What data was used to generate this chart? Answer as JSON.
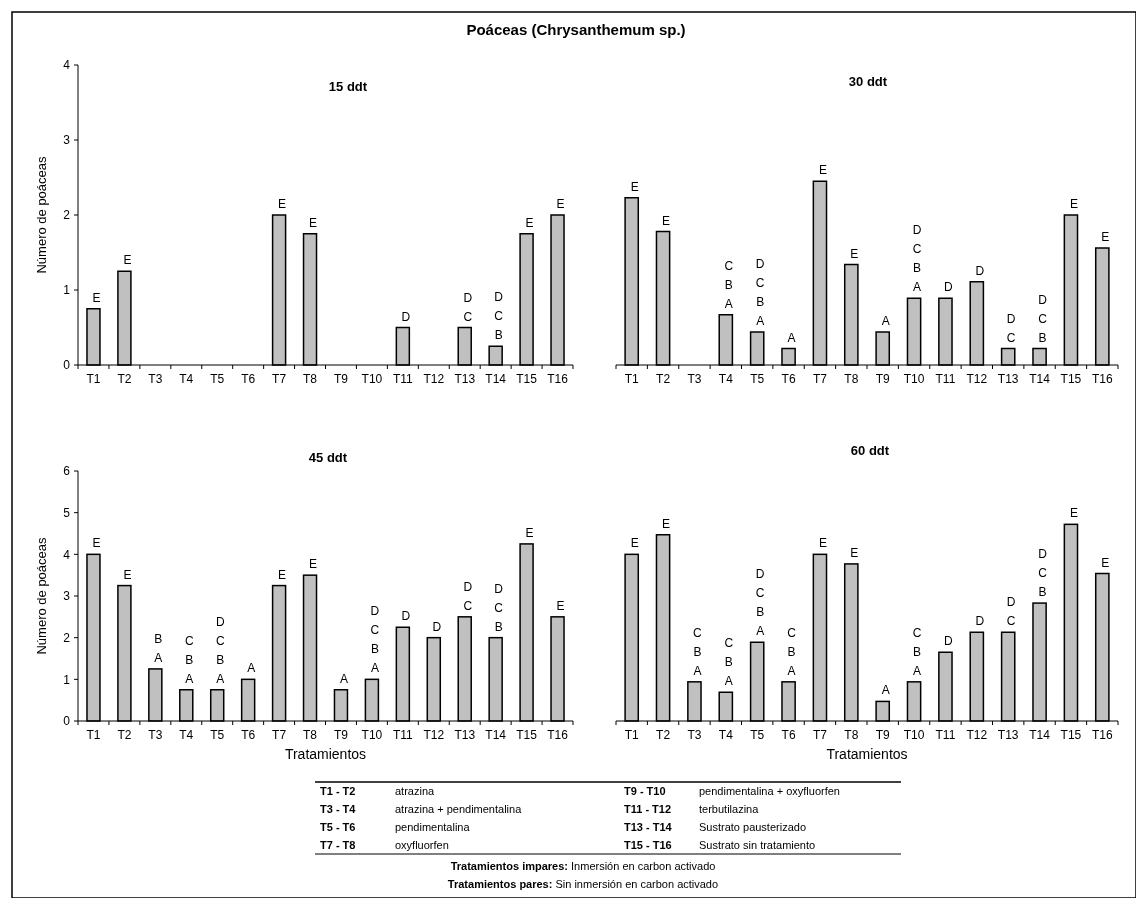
{
  "chart_data": [
    {
      "type": "bar",
      "title": "15 ddt",
      "ylabel": "Número de poáceas",
      "color": "#c0c0c0",
      "categories": [
        "T1",
        "T2",
        "T3",
        "T4",
        "T5",
        "T6",
        "T7",
        "T8",
        "T9",
        "T10",
        "T11",
        "T12",
        "T13",
        "T14",
        "T15",
        "T16"
      ],
      "values": [
        0.75,
        1.25,
        0,
        0,
        0,
        0,
        2,
        1.75,
        0,
        0,
        0.5,
        0,
        0.5,
        0.25,
        1.75,
        2
      ],
      "ylim": [
        0,
        4
      ],
      "yticks": [
        0,
        1,
        2,
        3,
        4
      ],
      "annotations": [
        {
          "text": "E",
          "x": "T1",
          "y": 0.75
        },
        {
          "text": "E",
          "x": "T2",
          "y": 1.25
        },
        {
          "text": "E",
          "x": "T7",
          "y": 2
        },
        {
          "text": "E",
          "x": "T8",
          "y": 1.75
        },
        {
          "text": "D",
          "x": "T11",
          "y": 0.5
        },
        {
          "text": "D\nC",
          "x": "T13",
          "y": 0.5
        },
        {
          "text": "D\nC\nB",
          "x": "T14",
          "y": 0.25
        },
        {
          "text": "E",
          "x": "T15",
          "y": 1.75
        },
        {
          "text": "E",
          "x": "T16",
          "y": 2
        }
      ]
    },
    {
      "type": "bar",
      "title": "30 ddt",
      "color": "#c0c0c0",
      "categories": [
        "T1",
        "T2",
        "T3",
        "T4",
        "T5",
        "T6",
        "T7",
        "T8",
        "T9",
        "T10",
        "T11",
        "T12",
        "T13",
        "T14",
        "T15",
        "T16"
      ],
      "values": [
        2.23,
        1.78,
        0,
        0.67,
        0.44,
        0.22,
        2.45,
        1.34,
        0.44,
        0.89,
        0.89,
        1.11,
        0.22,
        0.22,
        2,
        1.56
      ],
      "ylim": [
        0,
        4
      ],
      "yticks": [
        0,
        1,
        2,
        3,
        4
      ],
      "tick_labels": "x",
      "annotations": [
        {
          "text": "E",
          "x": "T1",
          "y": 2.23
        },
        {
          "text": "E",
          "x": "T2",
          "y": 1.78
        },
        {
          "text": "C\nB\nA",
          "x": "T4",
          "y": 0.67
        },
        {
          "text": "D\nC\nB\nA",
          "x": "T5",
          "y": 0.44
        },
        {
          "text": "A",
          "x": "T6",
          "y": 0.22
        },
        {
          "text": "E",
          "x": "T7",
          "y": 2.45
        },
        {
          "text": "E",
          "x": "T8",
          "y": 1.34
        },
        {
          "text": "A",
          "x": "T9",
          "y": 0.44
        },
        {
          "text": "D\nC\nB\nA",
          "x": "T10",
          "y": 0.89
        },
        {
          "text": "D",
          "x": "T11",
          "y": 0.89
        },
        {
          "text": "D",
          "x": "T12",
          "y": 1.11
        },
        {
          "text": "D\nC",
          "x": "T13",
          "y": 0.22
        },
        {
          "text": "D\nC\nB",
          "x": "T14",
          "y": 0.22
        },
        {
          "text": "E",
          "x": "T15",
          "y": 2
        },
        {
          "text": "E",
          "x": "T16",
          "y": 1.56
        }
      ]
    },
    {
      "type": "bar",
      "title": "45 ddt",
      "xlabel": "Tratamientos",
      "ylabel": "Número de poáceas",
      "color": "#c0c0c0",
      "categories": [
        "T1",
        "T2",
        "T3",
        "T4",
        "T5",
        "T6",
        "T7",
        "T8",
        "T9",
        "T10",
        "T11",
        "T12",
        "T13",
        "T14",
        "T15",
        "T16"
      ],
      "values": [
        4,
        3.25,
        1.25,
        0.75,
        0.75,
        1,
        3.25,
        3.5,
        0.75,
        1,
        2.25,
        2,
        2.5,
        2,
        4.25,
        2.5
      ],
      "ylim": [
        0,
        6
      ],
      "yticks": [
        0,
        1,
        2,
        3,
        4,
        5,
        6
      ],
      "annotations": [
        {
          "text": "E",
          "x": "T1",
          "y": 4
        },
        {
          "text": "E",
          "x": "T2",
          "y": 3.25
        },
        {
          "text": "B\nA",
          "x": "T3",
          "y": 1.25
        },
        {
          "text": "C\nB\nA",
          "x": "T4",
          "y": 0.75
        },
        {
          "text": "D\nC\nB\nA",
          "x": "T5",
          "y": 0.75
        },
        {
          "text": "A",
          "x": "T6",
          "y": 1
        },
        {
          "text": "E",
          "x": "T7",
          "y": 3.25
        },
        {
          "text": "E",
          "x": "T8",
          "y": 3.5
        },
        {
          "text": "A",
          "x": "T9",
          "y": 0.75
        },
        {
          "text": "D\nC\nB\nA",
          "x": "T10",
          "y": 1
        },
        {
          "text": "D",
          "x": "T11",
          "y": 2.25
        },
        {
          "text": "D",
          "x": "T12",
          "y": 2
        },
        {
          "text": "D\nC",
          "x": "T13",
          "y": 2.5
        },
        {
          "text": "D\nC\nB",
          "x": "T14",
          "y": 2
        },
        {
          "text": "E",
          "x": "T15",
          "y": 4.25
        },
        {
          "text": "E",
          "x": "T16",
          "y": 2.5
        }
      ]
    },
    {
      "type": "bar",
      "title": "60 ddt",
      "xlabel": "Tratamientos",
      "color": "#c0c0c0",
      "categories": [
        "T1",
        "T2",
        "T3",
        "T4",
        "T5",
        "T6",
        "T7",
        "T8",
        "T9",
        "T10",
        "T11",
        "T12",
        "T13",
        "T14",
        "T15",
        "T16"
      ],
      "values": [
        4,
        4.47,
        0.94,
        0.69,
        1.89,
        0.94,
        4,
        3.77,
        0.47,
        0.94,
        1.65,
        2.13,
        2.13,
        2.83,
        4.72,
        3.54
      ],
      "ylim": [
        0,
        6
      ],
      "yticks": [
        0,
        1,
        2,
        3,
        4,
        5,
        6
      ],
      "tick_labels": "x",
      "annotations": [
        {
          "text": "E",
          "x": "T1",
          "y": 4
        },
        {
          "text": "E",
          "x": "T2",
          "y": 4.47
        },
        {
          "text": "C\nB\nA",
          "x": "T3",
          "y": 0.94
        },
        {
          "text": "C\nB\nA",
          "x": "T4",
          "y": 0.69
        },
        {
          "text": "D\nC\nB\nA",
          "x": "T5",
          "y": 1.89
        },
        {
          "text": "C\nB\nA",
          "x": "T6",
          "y": 0.94
        },
        {
          "text": "E",
          "x": "T7",
          "y": 4
        },
        {
          "text": "E",
          "x": "T8",
          "y": 3.77
        },
        {
          "text": "A",
          "x": "T9",
          "y": 0.47
        },
        {
          "text": "C\nB\nA",
          "x": "T10",
          "y": 0.94
        },
        {
          "text": "D",
          "x": "T11",
          "y": 1.65
        },
        {
          "text": "D",
          "x": "T12",
          "y": 2.13
        },
        {
          "text": "D\nC",
          "x": "T13",
          "y": 2.13
        },
        {
          "text": "D\nC\nB",
          "x": "T14",
          "y": 2.83
        },
        {
          "text": "E",
          "x": "T15",
          "y": 4.72
        },
        {
          "text": "E",
          "x": "T16",
          "y": 3.54
        }
      ]
    },
    {
      "type": "other",
      "title": "Poáceas (Chrysanthemum sp.)",
      "annotations": [
        "T1 - T2",
        "atrazina",
        "T3 - T4",
        "atrazina + pendimentalina",
        "T5 - T6",
        "pendimentalina",
        "T7 - T8",
        "oxyfluorfen",
        "T9 - T10",
        "pendimentalina + oxyfluorfen",
        "T11 - T12",
        "terbutilazina",
        "T13 - T14",
        "Sustrato pausterizado",
        "T15 - T16",
        "Sustrato sin tratamiento",
        "Tratamientos impares: Inmersión en carbon activado",
        "Tratamientos pares: Sin inmersión en carbon activado"
      ]
    }
  ]
}
